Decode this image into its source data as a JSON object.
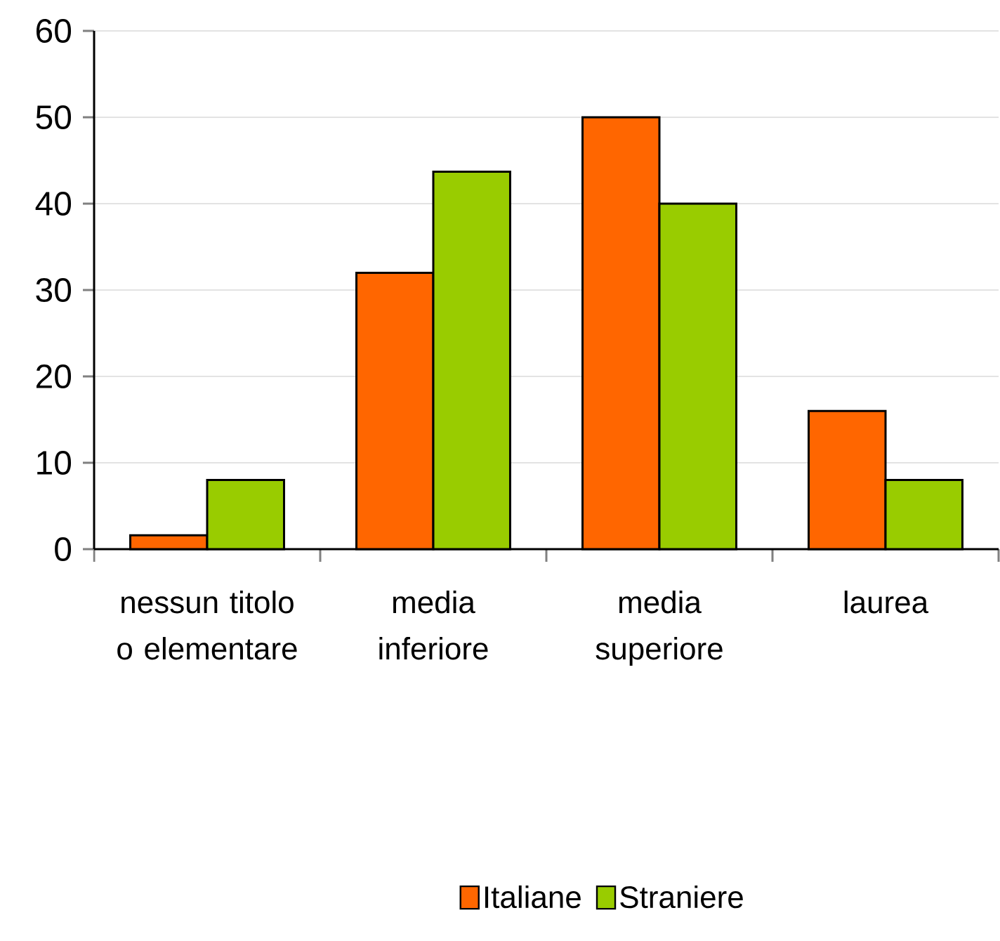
{
  "chart_data": {
    "type": "bar",
    "categories": [
      "nessun titolo o elementare",
      "media inferiore",
      "media superiore",
      "laurea"
    ],
    "series": [
      {
        "name": "Italiane",
        "color": "#ff6600",
        "values": [
          1.6,
          32,
          50,
          16
        ]
      },
      {
        "name": "Straniere",
        "color": "#99cc00",
        "values": [
          8,
          43.7,
          40,
          8
        ]
      }
    ],
    "ylim": [
      0,
      60
    ],
    "yticks": [
      0,
      10,
      20,
      30,
      40,
      50,
      60
    ],
    "grid": "y",
    "legend": "bottom"
  }
}
